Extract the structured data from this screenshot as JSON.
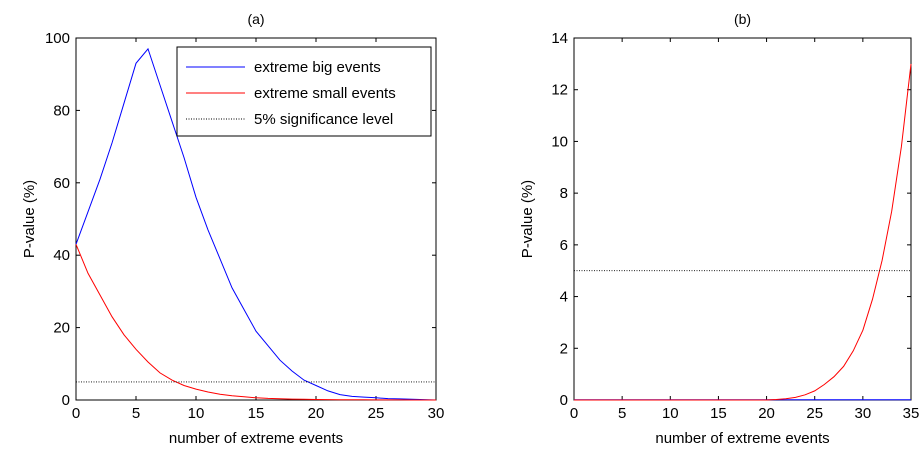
{
  "chart_data": [
    {
      "type": "line",
      "title": "(a)",
      "xlabel": "number of extreme events",
      "ylabel": "P-value (%)",
      "xlim": [
        0,
        30
      ],
      "ylim": [
        0,
        100
      ],
      "xticks": [
        0,
        5,
        10,
        15,
        20,
        25,
        30
      ],
      "yticks": [
        0,
        20,
        40,
        60,
        80,
        100
      ],
      "grid": false,
      "legend": "top-right",
      "series": [
        {
          "name": "extreme big events",
          "color": "#0000ff",
          "x": [
            0,
            1,
            2,
            3,
            4,
            5,
            6,
            7,
            8,
            9,
            10,
            11,
            12,
            13,
            14,
            15,
            16,
            17,
            18,
            19,
            20,
            21,
            22,
            23,
            24,
            25,
            26,
            27,
            28,
            29,
            30
          ],
          "y": [
            43,
            52,
            61,
            71,
            82,
            93,
            97,
            87,
            77,
            67,
            56,
            47,
            39,
            31,
            25,
            19,
            15,
            11,
            8,
            5.5,
            4,
            2.5,
            1.5,
            1,
            0.8,
            0.6,
            0.4,
            0.3,
            0.2,
            0.1,
            0
          ]
        },
        {
          "name": "extreme small events",
          "color": "#ff0000",
          "x": [
            0,
            1,
            2,
            3,
            4,
            5,
            6,
            7,
            8,
            9,
            10,
            11,
            12,
            13,
            14,
            15,
            16,
            17,
            18,
            19,
            20,
            21,
            22,
            23,
            24,
            25,
            26,
            27,
            28,
            29,
            30
          ],
          "y": [
            43,
            35,
            29,
            23,
            18,
            14,
            10.5,
            7.5,
            5.5,
            4,
            3,
            2.2,
            1.6,
            1.2,
            0.9,
            0.6,
            0.45,
            0.35,
            0.25,
            0.18,
            0.13,
            0.1,
            0.08,
            0.06,
            0.05,
            0.04,
            0.03,
            0.02,
            0.01,
            0.01,
            0.01
          ]
        },
        {
          "name": "5% significance level",
          "color": "#000000",
          "style": "dotted",
          "x": [
            0,
            30
          ],
          "y": [
            5,
            5
          ]
        }
      ]
    },
    {
      "type": "line",
      "title": "(b)",
      "xlabel": "number of extreme events",
      "ylabel": "P-value (%)",
      "xlim": [
        0,
        35
      ],
      "ylim": [
        0,
        14
      ],
      "xticks": [
        0,
        5,
        10,
        15,
        20,
        25,
        30,
        35
      ],
      "yticks": [
        0,
        2,
        4,
        6,
        8,
        10,
        12,
        14
      ],
      "grid": false,
      "series": [
        {
          "color": "#0000ff",
          "x": [
            0,
            5,
            10,
            15,
            20,
            25,
            30,
            35
          ],
          "y": [
            0.01,
            0.01,
            0.01,
            0.01,
            0.01,
            0.01,
            0.01,
            0.01
          ]
        },
        {
          "color": "#ff0000",
          "x": [
            0,
            5,
            10,
            15,
            20,
            21,
            22,
            23,
            24,
            25,
            26,
            27,
            28,
            29,
            30,
            31,
            32,
            33,
            34,
            35
          ],
          "y": [
            0,
            0,
            0,
            0,
            0,
            0.02,
            0.05,
            0.1,
            0.2,
            0.35,
            0.6,
            0.9,
            1.3,
            1.9,
            2.7,
            3.9,
            5.4,
            7.3,
            9.8,
            13
          ]
        },
        {
          "color": "#000000",
          "style": "dotted",
          "x": [
            0,
            35
          ],
          "y": [
            5,
            5
          ]
        }
      ]
    }
  ]
}
